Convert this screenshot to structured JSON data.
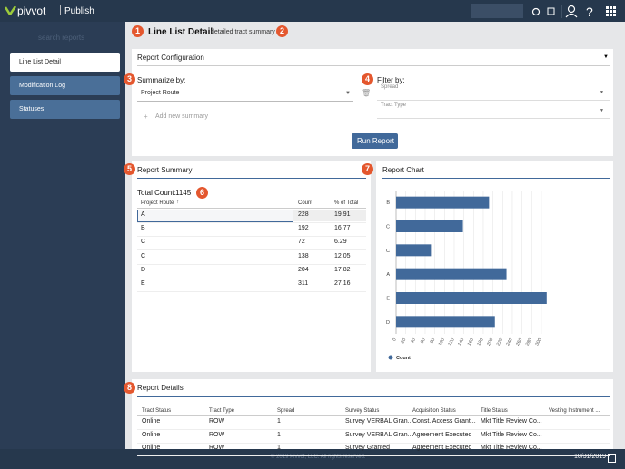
{
  "topbar": {
    "brand": "pivvot",
    "product": "Publish"
  },
  "sidebar": {
    "search_placeholder": "search reports",
    "items": [
      "Line List Detail",
      "Modification Log",
      "Statuses"
    ]
  },
  "header": {
    "title": "Line List Detail",
    "subtitle": "detailed tract summary"
  },
  "badges": [
    "1",
    "2",
    "3",
    "4",
    "5",
    "6",
    "7",
    "8"
  ],
  "config": {
    "title": "Report Configuration",
    "summarize_label": "Summarize by:",
    "summarize_value": "Project Route",
    "add_summary": "Add new summary",
    "filter_label": "Filter by:",
    "filters": [
      "Spread",
      "Tract Type"
    ],
    "button": "Run Report"
  },
  "summary": {
    "title": "Report Summary",
    "total_label": "Total Count:",
    "total": 1145,
    "columns": [
      "Project Route",
      "Count",
      "% of Total"
    ],
    "rows": [
      [
        "A",
        228,
        19.91
      ],
      [
        "B",
        192,
        16.77
      ],
      [
        "C",
        72,
        6.29
      ],
      [
        "C",
        138,
        12.05
      ],
      [
        "D",
        204,
        17.82
      ],
      [
        "E",
        311,
        27.16
      ]
    ]
  },
  "report_chart": {
    "type": "bar",
    "title": "Report Chart",
    "categories": [
      "B",
      "C",
      "C",
      "A",
      "E",
      "D"
    ],
    "series": [
      {
        "name": "Count",
        "color": "#41699a",
        "values": [
          192,
          138,
          72,
          228,
          311,
          204
        ]
      }
    ],
    "xlim": [
      0,
      320
    ],
    "xticks": [
      0,
      20,
      40,
      60,
      80,
      100,
      120,
      140,
      160,
      180,
      200,
      220,
      240,
      260,
      280,
      300
    ],
    "grid": true
  },
  "details": {
    "title": "Report Details",
    "columns": [
      "Tract Status",
      "Tract Type",
      "Spread",
      "Survey Status",
      "Acquisition Status",
      "Title Status",
      "Vesting Instrument ..."
    ],
    "rows": [
      [
        "Online",
        "ROW",
        1,
        "Survey VERBAL Gran...",
        "Const. Access Grant...",
        "Mkt Title Review Co..."
      ],
      [
        "Online",
        "ROW",
        1,
        "Survey VERBAL Gran...",
        "Agreement Executed",
        "Mkt Title Review Co..."
      ],
      [
        "Online",
        "ROW",
        1,
        "Survey Granted",
        "Agreement Executed",
        "Mkt Title Review Co..."
      ]
    ]
  },
  "footer": {
    "copyright": "© 2019 Pivvot, LLC. All rights reserved.",
    "date": "10/31/2019"
  }
}
